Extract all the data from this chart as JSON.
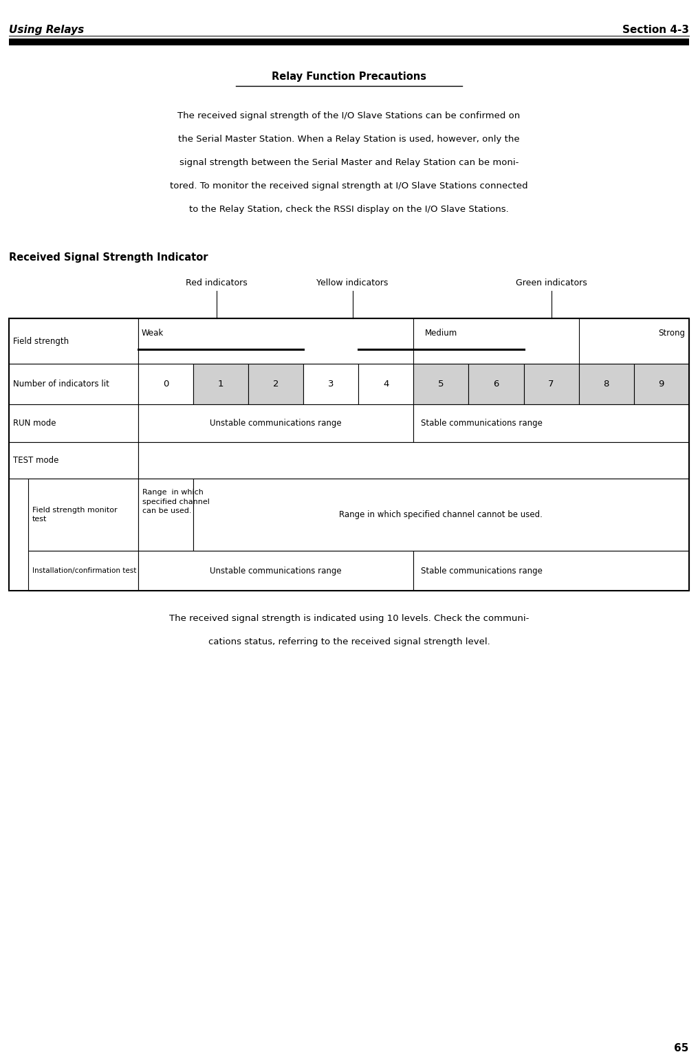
{
  "page_width": 10.15,
  "page_height": 15.43,
  "bg_color": "#ffffff",
  "header_left": "Using Relays",
  "header_right": "Section 4-3",
  "footer_text": "65",
  "section_title": "Relay Function Precautions",
  "body_para1_lines": [
    "The received signal strength of the I/O Slave Stations can be confirmed on",
    "the Serial Master Station. When a Relay Station is used, however, only the",
    "signal strength between the Serial Master and Relay Station can be moni-",
    "tored. To monitor the received signal strength at I/O Slave Stations connected",
    "to the Relay Station, check the RSSI display on the I/O Slave Stations."
  ],
  "section2_title": "Received Signal Strength Indicator",
  "indicator_labels": [
    "Red indicators",
    "Yellow indicators",
    "Green indicators"
  ],
  "number_indicators": [
    "0",
    "1",
    "2",
    "3",
    "4",
    "5",
    "6",
    "7",
    "8",
    "9"
  ],
  "gray_cells": [
    1,
    2,
    5,
    6,
    7,
    8,
    9
  ],
  "run_mode_unstable": "Unstable communications range",
  "run_mode_stable": "Stable communications range",
  "field_strength_monitor_range_can": "Range  in which\nspecified channel\ncan be used.",
  "field_strength_monitor_range_cannot": "Range in which specified channel cannot be used.",
  "installation_label": "Installation/confirmation test",
  "installation_unstable": "Unstable communications range",
  "installation_stable": "Stable communications range",
  "body_para2_lines": [
    "The received signal strength is indicated using 10 levels. Check the communi-",
    "cations status, referring to the received signal strength level."
  ],
  "gray_color": "#d0d0d0",
  "font_color": "#000000"
}
